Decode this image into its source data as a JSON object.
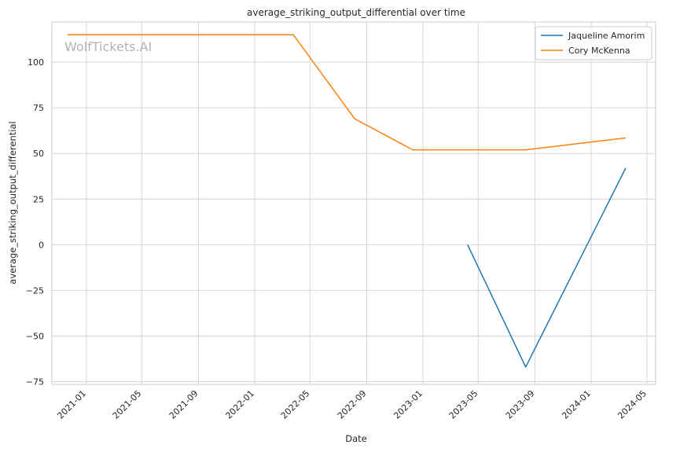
{
  "chart_data": {
    "type": "line",
    "title": "average_striking_output_differential over time",
    "xlabel": "Date",
    "ylabel": "average_striking_output_differential",
    "watermark": "WolfTickets.AI",
    "x_tick_labels": [
      "2021-01",
      "2021-05",
      "2021-09",
      "2022-01",
      "2022-05",
      "2022-09",
      "2023-01",
      "2023-05",
      "2023-09",
      "2024-01",
      "2024-05"
    ],
    "y_tick_labels": [
      "−75",
      "−50",
      "−25",
      "0",
      "25",
      "50",
      "75",
      "100"
    ],
    "y_ticks": [
      -75,
      -50,
      -25,
      0,
      25,
      50,
      75,
      100
    ],
    "xlim": [
      "2020-10-18",
      "2024-05-20"
    ],
    "ylim": [
      -76.5,
      122
    ],
    "grid": true,
    "legend_position": "top-right",
    "series": [
      {
        "name": "Jaqueline Amorim",
        "color": "#1f77b4",
        "x": [
          "2023-04-08",
          "2023-08-12",
          "2024-03-16"
        ],
        "y": [
          0,
          -67,
          42
        ]
      },
      {
        "name": "Cory McKenna",
        "color": "#ff7f0e",
        "x": [
          "2020-11-21",
          "2022-03-26",
          "2022-08-06",
          "2022-12-10",
          "2023-08-12",
          "2024-03-16"
        ],
        "y": [
          115,
          115,
          69,
          52,
          52,
          58.5
        ]
      }
    ]
  }
}
